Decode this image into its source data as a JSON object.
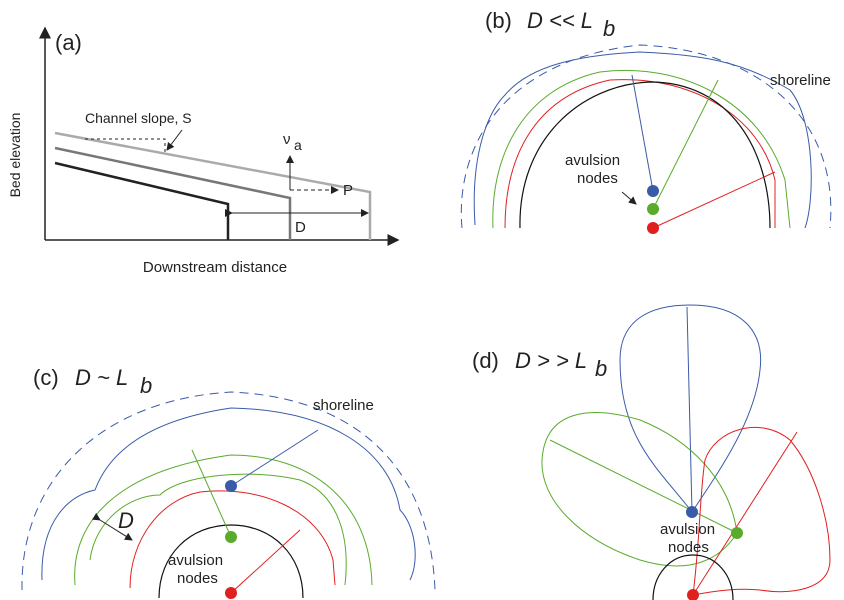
{
  "panel_a": {
    "label": "(a)",
    "y_axis_label": "Bed elevation",
    "x_axis_label": "Downstream distance",
    "slope_label": "Channel slope, S",
    "nu": "ν",
    "nu_sub": "a",
    "p_label": "P",
    "d_label": "D"
  },
  "panel_b": {
    "label": "(b)",
    "expression": "D << L",
    "expression_sub": "b",
    "shoreline": "shoreline",
    "avulsion": "avulsion",
    "nodes": "nodes"
  },
  "panel_c": {
    "label": "(c)",
    "expression": "D ~ L",
    "expression_sub": "b",
    "shoreline": "shoreline",
    "d_label": "D",
    "avulsion": "avulsion",
    "nodes": "nodes"
  },
  "panel_d": {
    "label": "(d)",
    "expression": "D > > L",
    "expression_sub": "b",
    "avulsion": "avulsion",
    "nodes": "nodes"
  }
}
